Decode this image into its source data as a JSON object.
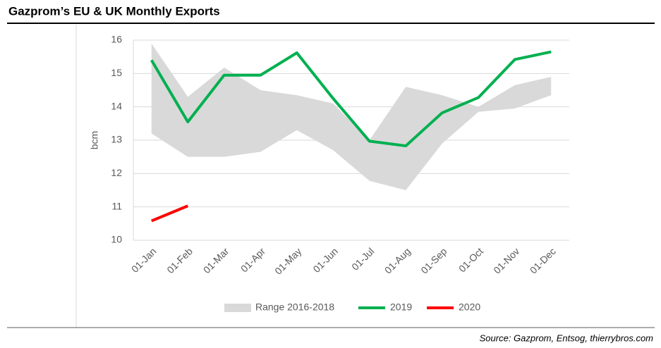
{
  "chart_data": {
    "type": "line",
    "title": "Gazprom’s EU & UK Monthly Exports",
    "source": "Source: Gazprom, Entsog, thierrybros.com",
    "y_label": "bcm",
    "categories": [
      "01-Jan",
      "01-Feb",
      "01-Mar",
      "01-Apr",
      "01-May",
      "01-Jun",
      "01-Jul",
      "01-Aug",
      "01-Sep",
      "01-Oct",
      "01-Nov",
      "01-Dec"
    ],
    "ylim": [
      10,
      16
    ],
    "yticks": [
      10,
      11,
      12,
      13,
      14,
      15,
      16
    ],
    "grid": true,
    "range": {
      "name": "Range 2016-2018",
      "color": "#d9d9d9",
      "low": [
        13.2,
        12.5,
        12.5,
        12.65,
        13.3,
        12.7,
        11.78,
        11.5,
        12.9,
        13.85,
        13.95,
        14.35
      ],
      "high": [
        15.9,
        14.3,
        15.18,
        14.5,
        14.35,
        14.1,
        13.0,
        14.6,
        14.35,
        14.0,
        14.65,
        14.9
      ]
    },
    "series": [
      {
        "name": "2019",
        "color": "#00b050",
        "values": [
          15.4,
          13.55,
          14.95,
          14.95,
          15.62,
          14.25,
          12.97,
          12.83,
          13.82,
          14.28,
          15.42,
          15.65
        ]
      },
      {
        "name": "2020",
        "color": "#ff0000",
        "values": [
          10.58,
          11.03,
          null,
          null,
          null,
          null,
          null,
          null,
          null,
          null,
          null,
          null
        ]
      }
    ]
  }
}
